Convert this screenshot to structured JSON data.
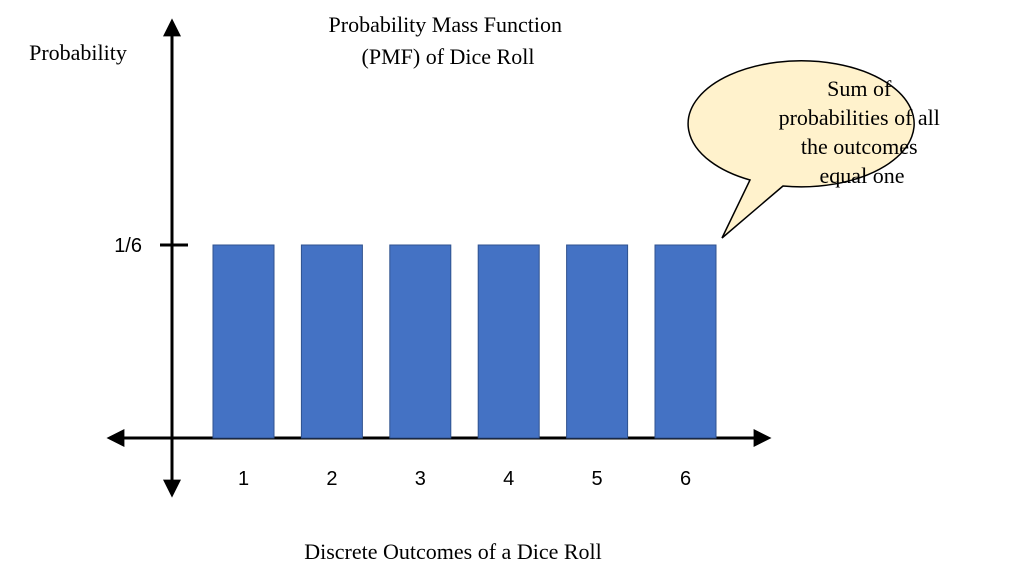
{
  "chart_data": {
    "type": "bar",
    "title_lines": [
      "Probability Mass Function",
      "(PMF) of Dice Roll"
    ],
    "ylabel": "Probability",
    "xlabel": "Discrete Outcomes of a Dice Roll",
    "categories": [
      "1",
      "2",
      "3",
      "4",
      "5",
      "6"
    ],
    "values": [
      0.16667,
      0.16667,
      0.16667,
      0.16667,
      0.16667,
      0.16667
    ],
    "ylim": [
      0,
      0.16667
    ],
    "y_ticks": [
      {
        "value": 0.16667,
        "label": "1/6"
      }
    ],
    "grid": false,
    "legend": "none",
    "annotation_lines": [
      "Sum of",
      "probabilities of all",
      "the outcomes",
      "equal one"
    ],
    "colors": {
      "bar_fill": "#4472C4",
      "bar_stroke": "#2F528F",
      "axis": "#000000",
      "callout_fill": "#FFF2CC",
      "callout_stroke": "#000000"
    }
  }
}
